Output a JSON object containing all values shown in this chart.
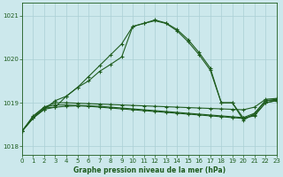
{
  "title": "Graphe pression niveau de la mer (hPa)",
  "background_color": "#cce8ec",
  "grid_color": "#aacfd4",
  "line_color": "#1e5c1e",
  "xlim": [
    0,
    23
  ],
  "ylim": [
    1017.8,
    1021.3
  ],
  "yticks": [
    1018,
    1019,
    1020,
    1021
  ],
  "xticks": [
    0,
    1,
    2,
    3,
    4,
    5,
    6,
    7,
    8,
    9,
    10,
    11,
    12,
    13,
    14,
    15,
    16,
    17,
    18,
    19,
    20,
    21,
    22,
    23
  ],
  "series": [
    {
      "x": [
        0,
        1,
        2,
        3,
        4,
        5,
        6,
        7,
        8,
        9,
        10,
        11,
        12,
        13,
        14,
        15,
        16,
        17,
        18,
        19,
        20,
        21,
        22,
        23
      ],
      "y": [
        1018.35,
        1018.65,
        1018.85,
        1019.05,
        1019.15,
        1019.35,
        1019.6,
        1019.85,
        1020.1,
        1020.35,
        1020.75,
        1020.82,
        1020.88,
        1020.82,
        1020.65,
        1020.4,
        1020.1,
        1019.75,
        1019.0,
        1019.0,
        1018.6,
        1018.75,
        1019.05,
        1019.05
      ]
    },
    {
      "x": [
        0,
        1,
        2,
        3,
        4,
        5,
        6,
        7,
        8,
        9,
        10,
        11,
        12,
        13,
        14,
        15,
        16,
        17,
        18,
        19,
        20,
        21,
        22,
        23
      ],
      "y": [
        1018.35,
        1018.65,
        1018.85,
        1018.9,
        1019.15,
        1019.35,
        1019.5,
        1019.72,
        1019.88,
        1020.05,
        1020.75,
        1020.82,
        1020.9,
        1020.83,
        1020.68,
        1020.45,
        1020.15,
        1019.8,
        1019.0,
        1019.0,
        1018.65,
        1018.7,
        1019.0,
        1019.05
      ]
    },
    {
      "x": [
        0,
        1,
        2,
        3,
        4,
        5,
        6,
        7,
        8,
        9,
        10,
        11,
        12,
        13,
        14,
        15,
        16,
        17,
        18,
        19,
        20,
        21,
        22,
        23
      ],
      "y": [
        1018.35,
        1018.65,
        1018.88,
        1018.9,
        1018.92,
        1018.93,
        1018.92,
        1018.9,
        1018.88,
        1018.86,
        1018.84,
        1018.82,
        1018.8,
        1018.78,
        1018.76,
        1018.74,
        1018.72,
        1018.7,
        1018.68,
        1018.66,
        1018.64,
        1018.72,
        1019.0,
        1019.05
      ]
    },
    {
      "x": [
        0,
        1,
        2,
        3,
        4,
        5,
        6,
        7,
        8,
        9,
        10,
        11,
        12,
        13,
        14,
        15,
        16,
        17,
        18,
        19,
        20,
        21,
        22,
        23
      ],
      "y": [
        1018.35,
        1018.68,
        1018.9,
        1018.95,
        1018.95,
        1018.94,
        1018.93,
        1018.92,
        1018.9,
        1018.88,
        1018.86,
        1018.84,
        1018.82,
        1018.8,
        1018.78,
        1018.76,
        1018.74,
        1018.72,
        1018.7,
        1018.68,
        1018.66,
        1018.76,
        1019.05,
        1019.08
      ]
    },
    {
      "x": [
        0,
        1,
        2,
        3,
        4,
        5,
        6,
        7,
        8,
        9,
        10,
        11,
        12,
        13,
        14,
        15,
        16,
        17,
        18,
        19,
        20,
        21,
        22,
        23
      ],
      "y": [
        1018.35,
        1018.7,
        1018.9,
        1019.0,
        1019.0,
        1018.99,
        1018.98,
        1018.97,
        1018.96,
        1018.95,
        1018.94,
        1018.93,
        1018.92,
        1018.91,
        1018.9,
        1018.89,
        1018.88,
        1018.87,
        1018.86,
        1018.85,
        1018.84,
        1018.9,
        1019.08,
        1019.1
      ]
    }
  ]
}
